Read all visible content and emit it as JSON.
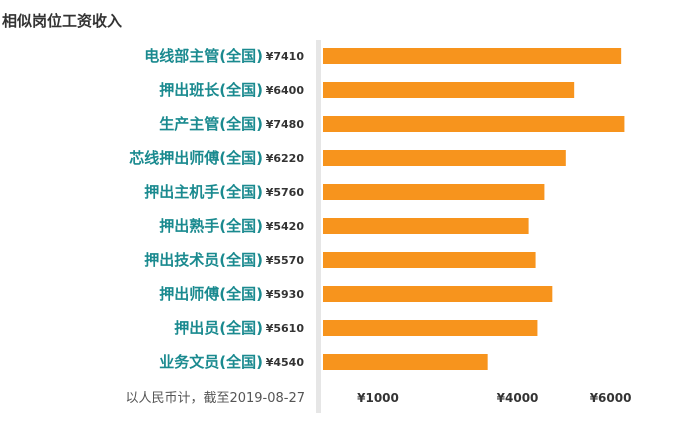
{
  "chart_data": {
    "type": "bar",
    "orientation": "horizontal",
    "title": "相似岗位工资收入",
    "categories": [
      "电线部主管(全国)",
      "押出班长(全国)",
      "生产主管(全国)",
      "芯线押出师傅(全国)",
      "押出主机手(全国)",
      "押出熟手(全国)",
      "押出技术员(全国)",
      "押出师傅(全国)",
      "押出员(全国)",
      "业务文员(全国)"
    ],
    "values": [
      7410,
      6400,
      7480,
      6220,
      5760,
      5420,
      5570,
      5930,
      5610,
      4540
    ],
    "value_labels": [
      "¥7410",
      "¥6400",
      "¥7480",
      "¥6220",
      "¥5760",
      "¥5420",
      "¥5570",
      "¥5930",
      "¥5610",
      "¥4540"
    ],
    "x_ticks": [
      1000,
      4000,
      6000
    ],
    "x_tick_labels": [
      "¥1000",
      "¥4000",
      "¥6000"
    ],
    "xlim": [
      1000,
      7600
    ],
    "note": "以人民币计，截至2019-08-27",
    "bar_color": "#f7941d",
    "label_color": "#1a8a8f",
    "grid": false
  }
}
